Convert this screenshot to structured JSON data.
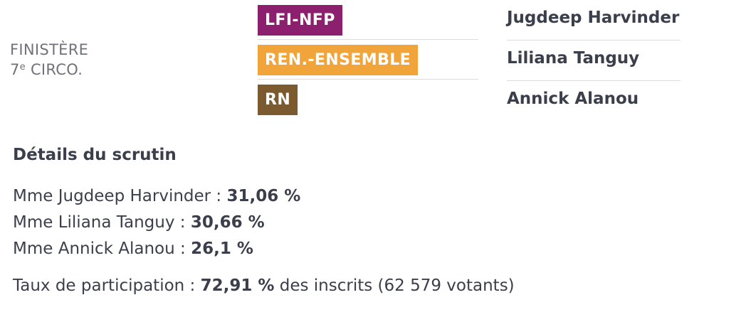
{
  "circonscription": {
    "line1": "FINISTÈRE",
    "number": "7",
    "superscript": "e",
    "suffix": " CIRCO."
  },
  "parties": [
    {
      "label": "LFI-NFP",
      "color": "#8c1f6e"
    },
    {
      "label": "REN.-ENSEMBLE",
      "color": "#f0a43a"
    },
    {
      "label": "RN",
      "color": "#7a5a2e"
    }
  ],
  "candidates": [
    {
      "name": "Jugdeep Harvinder"
    },
    {
      "name": "Liliana Tanguy"
    },
    {
      "name": "Annick Alanou"
    }
  ],
  "details": {
    "title": "Détails du scrutin",
    "results": [
      {
        "label": "Mme Jugdeep Harvinder : ",
        "value": "31,06 %"
      },
      {
        "label": "Mme Liliana Tanguy : ",
        "value": "30,66 %"
      },
      {
        "label": "Mme Annick Alanou : ",
        "value": "26,1 %"
      }
    ],
    "turnout": {
      "prefix": "Taux de participation : ",
      "value": "72,91 %",
      "suffix": " des inscrits (62 579 votants)"
    }
  }
}
